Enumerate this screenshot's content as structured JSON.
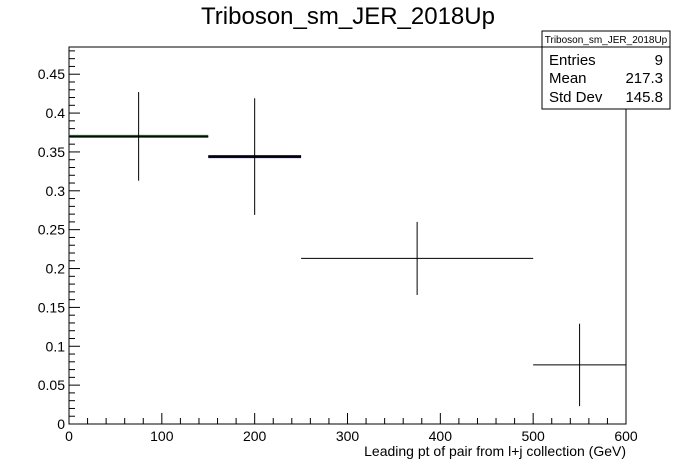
{
  "chart_data": {
    "type": "scatter",
    "title": "Triboson_sm_JER_2018Up",
    "xlabel": "Leading pt of pair from l+j collection (GeV)",
    "ylabel": "",
    "xlim": [
      0,
      600
    ],
    "ylim": [
      0,
      0.485
    ],
    "x_ticks": [
      "0",
      "100",
      "200",
      "300",
      "400",
      "500",
      "600"
    ],
    "y_ticks": [
      "0",
      "0.05",
      "0.1",
      "0.15",
      "0.2",
      "0.25",
      "0.3",
      "0.35",
      "0.4",
      "0.45"
    ],
    "grid": false,
    "points": [
      {
        "x": 75,
        "x_low": 0,
        "x_high": 150,
        "y": 0.37,
        "y_err": 0.057
      },
      {
        "x": 200,
        "x_low": 150,
        "x_high": 250,
        "y": 0.344,
        "y_err": 0.075
      },
      {
        "x": 375,
        "x_low": 250,
        "x_high": 500,
        "y": 0.213,
        "y_err": 0.047
      },
      {
        "x": 550,
        "x_low": 500,
        "x_high": 600,
        "y": 0.076,
        "y_err": 0.053
      }
    ],
    "highlight_segments": [
      {
        "x_low": 0,
        "x_high": 150,
        "y": 0.37,
        "color": "#008000"
      },
      {
        "x_low": 150,
        "x_high": 250,
        "y": 0.344,
        "color": "#000080"
      }
    ],
    "stats_box": {
      "title": "Triboson_sm_JER_2018Up",
      "rows": [
        {
          "label": "Entries",
          "value": "9"
        },
        {
          "label": "Mean",
          "value": "217.3"
        },
        {
          "label": "Std Dev",
          "value": "145.8"
        }
      ]
    }
  }
}
